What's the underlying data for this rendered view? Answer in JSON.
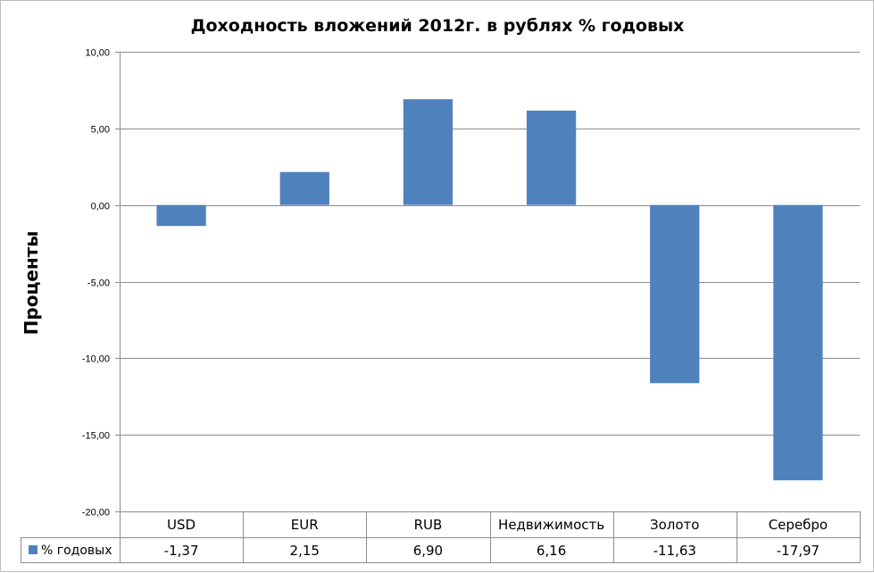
{
  "chart_data": {
    "type": "bar",
    "title": "Доходность вложений 2012г. в рублях % годовых",
    "ylabel": "Проценты",
    "xlabel": "",
    "categories": [
      "USD",
      "EUR",
      "RUB",
      "Недвижимость",
      "Золото",
      "Серебро"
    ],
    "series": [
      {
        "name": "% годовых",
        "values": [
          -1.37,
          2.15,
          6.9,
          6.16,
          -11.63,
          -17.97
        ],
        "value_labels": [
          "-1,37",
          "2,15",
          "6,90",
          "6,16",
          "-11,63",
          "-17,97"
        ],
        "color": "#4f81bd"
      }
    ],
    "ylim": [
      -20,
      10
    ],
    "yticks": [
      10,
      5,
      0,
      -5,
      -10,
      -15,
      -20
    ],
    "ytick_labels": [
      "10,00",
      "5,00",
      "0,00",
      "-5,00",
      "-10,00",
      "-15,00",
      "-20,00"
    ],
    "grid": true,
    "legend": "data-table",
    "data_table": true
  }
}
